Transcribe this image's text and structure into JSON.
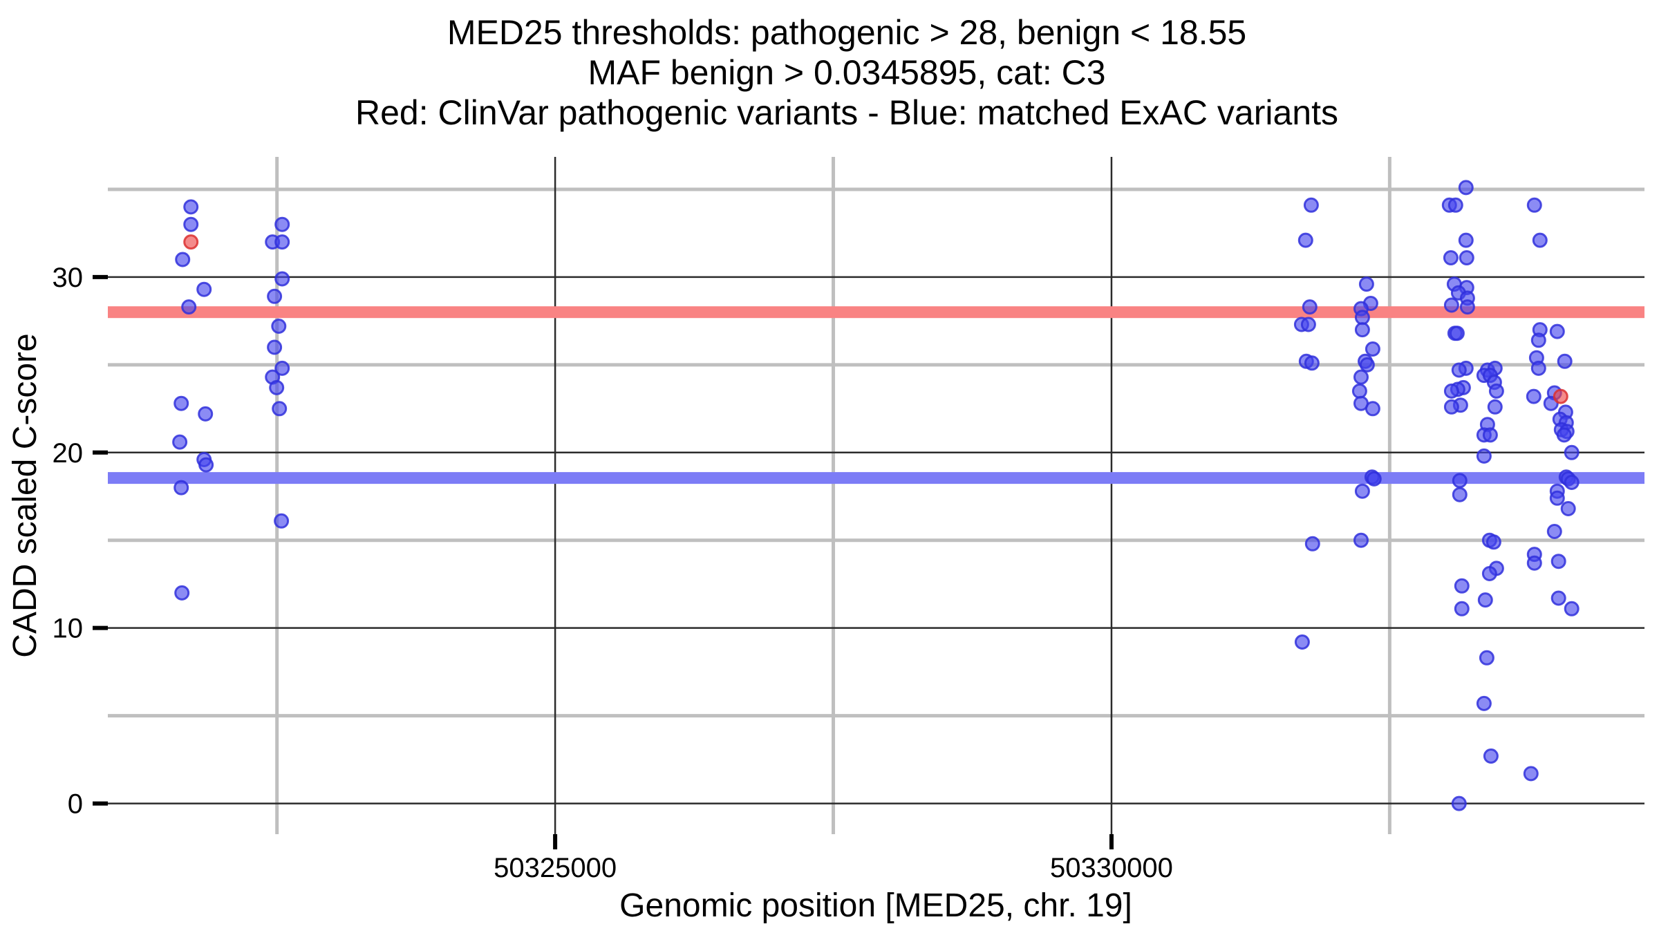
{
  "title": {
    "line1": "MED25 thresholds: pathogenic > 28, benign < 18.55",
    "line2": "MAF benign > 0.0345895, cat: C3",
    "line3": "Red: ClinVar pathogenic variants - Blue: matched ExAC variants"
  },
  "colors": {
    "background": "#FFFFFF",
    "minor_grid": "#BFBFBF",
    "major_grid": "#2B2B2B",
    "tick": "#000000",
    "text": "#000000",
    "pathogenic_line": "#F98383",
    "benign_line": "#7C7CF6",
    "exac_point_fill": "#4444EE",
    "exac_point_stroke": "#3030DC",
    "clinvar_point_fill": "#EE4444",
    "clinvar_point_stroke": "#DC3030"
  },
  "chart_data": {
    "type": "scatter",
    "title_lines": [
      "MED25 thresholds: pathogenic > 28, benign < 18.55",
      "MAF benign > 0.0345895, cat: C3",
      "Red: ClinVar pathogenic variants - Blue: matched ExAC variants"
    ],
    "xlabel": "Genomic position [MED25, chr. 19]",
    "ylabel": "CADD scaled C-score",
    "xlim": [
      50320980,
      50334790
    ],
    "ylim": [
      -1.75,
      36.85
    ],
    "x_ticks": [
      {
        "value": 50325000,
        "label": "50325000"
      },
      {
        "value": 50330000,
        "label": "50330000"
      }
    ],
    "x_minor_gridlines": [
      50322500,
      50327500,
      50332500
    ],
    "y_ticks": [
      {
        "value": 0,
        "label": "0"
      },
      {
        "value": 10,
        "label": "10"
      },
      {
        "value": 20,
        "label": "20"
      },
      {
        "value": 30,
        "label": "30"
      }
    ],
    "y_minor_gridlines": [
      5,
      15,
      25,
      35
    ],
    "grid": "on",
    "legend": "none",
    "hlines": [
      {
        "label": "pathogenic threshold",
        "y": 28,
        "color_key": "pathogenic_line"
      },
      {
        "label": "benign threshold",
        "y": 18.55,
        "color_key": "benign_line"
      }
    ],
    "series": [
      {
        "name": "matched ExAC variants",
        "color_key": "exac_point_fill",
        "points": [
          [
            50321727,
            34.0
          ],
          [
            50321727,
            33.0
          ],
          [
            50321652,
            31.0
          ],
          [
            50321845,
            29.3
          ],
          [
            50321708,
            28.3
          ],
          [
            50321640,
            22.8
          ],
          [
            50321857,
            22.2
          ],
          [
            50321627,
            20.6
          ],
          [
            50321845,
            19.6
          ],
          [
            50321863,
            19.3
          ],
          [
            50321640,
            18.0
          ],
          [
            50321646,
            12.0
          ],
          [
            50322547,
            33.0
          ],
          [
            50322460,
            32.0
          ],
          [
            50322547,
            32.0
          ],
          [
            50322547,
            29.9
          ],
          [
            50322478,
            28.9
          ],
          [
            50322516,
            27.2
          ],
          [
            50322478,
            26.0
          ],
          [
            50322547,
            24.8
          ],
          [
            50322460,
            24.3
          ],
          [
            50322497,
            23.7
          ],
          [
            50322522,
            22.5
          ],
          [
            50322540,
            16.1
          ],
          [
            50331795,
            34.1
          ],
          [
            50331745,
            32.1
          ],
          [
            50331782,
            28.3
          ],
          [
            50331708,
            27.3
          ],
          [
            50331770,
            27.3
          ],
          [
            50331751,
            25.2
          ],
          [
            50331801,
            25.1
          ],
          [
            50331807,
            14.8
          ],
          [
            50331714,
            9.2
          ],
          [
            50332292,
            29.6
          ],
          [
            50332329,
            28.5
          ],
          [
            50332243,
            28.2
          ],
          [
            50332255,
            27.7
          ],
          [
            50332255,
            27.0
          ],
          [
            50332348,
            25.9
          ],
          [
            50332280,
            25.2
          ],
          [
            50332298,
            25.0
          ],
          [
            50332243,
            24.3
          ],
          [
            50332230,
            23.5
          ],
          [
            50332243,
            22.8
          ],
          [
            50332348,
            22.5
          ],
          [
            50332342,
            18.6
          ],
          [
            50332360,
            18.5
          ],
          [
            50332255,
            17.8
          ],
          [
            50332243,
            15.0
          ],
          [
            50333186,
            35.1
          ],
          [
            50333037,
            34.1
          ],
          [
            50333093,
            34.1
          ],
          [
            50333186,
            32.1
          ],
          [
            50333050,
            31.1
          ],
          [
            50333192,
            31.1
          ],
          [
            50333081,
            29.6
          ],
          [
            50333192,
            29.4
          ],
          [
            50333118,
            29.1
          ],
          [
            50333199,
            28.8
          ],
          [
            50333056,
            28.4
          ],
          [
            50333199,
            28.3
          ],
          [
            50333087,
            26.8
          ],
          [
            50333106,
            26.8
          ],
          [
            50333186,
            24.8
          ],
          [
            50333124,
            24.7
          ],
          [
            50333162,
            23.7
          ],
          [
            50333112,
            23.6
          ],
          [
            50333056,
            23.5
          ],
          [
            50333137,
            22.7
          ],
          [
            50333056,
            22.6
          ],
          [
            50333130,
            18.4
          ],
          [
            50333130,
            17.6
          ],
          [
            50333149,
            12.4
          ],
          [
            50333149,
            11.1
          ],
          [
            50333124,
            0.0
          ],
          [
            50333379,
            24.7
          ],
          [
            50333447,
            24.8
          ],
          [
            50333348,
            24.4
          ],
          [
            50333404,
            24.4
          ],
          [
            50333441,
            24.0
          ],
          [
            50333460,
            23.5
          ],
          [
            50333447,
            22.6
          ],
          [
            50333379,
            21.6
          ],
          [
            50333348,
            21.0
          ],
          [
            50333404,
            21.0
          ],
          [
            50333348,
            19.8
          ],
          [
            50333398,
            15.0
          ],
          [
            50333435,
            14.9
          ],
          [
            50333460,
            13.4
          ],
          [
            50333398,
            13.1
          ],
          [
            50333360,
            11.6
          ],
          [
            50333373,
            8.3
          ],
          [
            50333348,
            5.7
          ],
          [
            50333410,
            2.7
          ],
          [
            50333801,
            34.1
          ],
          [
            50333851,
            32.1
          ],
          [
            50333851,
            27.0
          ],
          [
            50334006,
            26.9
          ],
          [
            50333838,
            26.4
          ],
          [
            50333820,
            25.4
          ],
          [
            50334074,
            25.2
          ],
          [
            50333838,
            24.8
          ],
          [
            50333981,
            23.4
          ],
          [
            50333795,
            23.2
          ],
          [
            50333950,
            22.8
          ],
          [
            50334081,
            22.3
          ],
          [
            50334031,
            21.9
          ],
          [
            50334087,
            21.7
          ],
          [
            50334043,
            21.3
          ],
          [
            50334093,
            21.2
          ],
          [
            50334068,
            21.0
          ],
          [
            50334136,
            20.0
          ],
          [
            50334087,
            18.6
          ],
          [
            50334105,
            18.5
          ],
          [
            50334136,
            18.3
          ],
          [
            50334006,
            17.8
          ],
          [
            50334006,
            17.4
          ],
          [
            50334105,
            16.8
          ],
          [
            50333981,
            15.5
          ],
          [
            50333801,
            14.2
          ],
          [
            50334018,
            13.8
          ],
          [
            50333801,
            13.7
          ],
          [
            50334018,
            11.7
          ],
          [
            50334136,
            11.1
          ],
          [
            50333770,
            1.7
          ]
        ]
      },
      {
        "name": "ClinVar pathogenic variants",
        "color_key": "clinvar_point_fill",
        "points": [
          [
            50321727,
            32.0
          ],
          [
            50334037,
            23.2
          ]
        ]
      }
    ]
  }
}
